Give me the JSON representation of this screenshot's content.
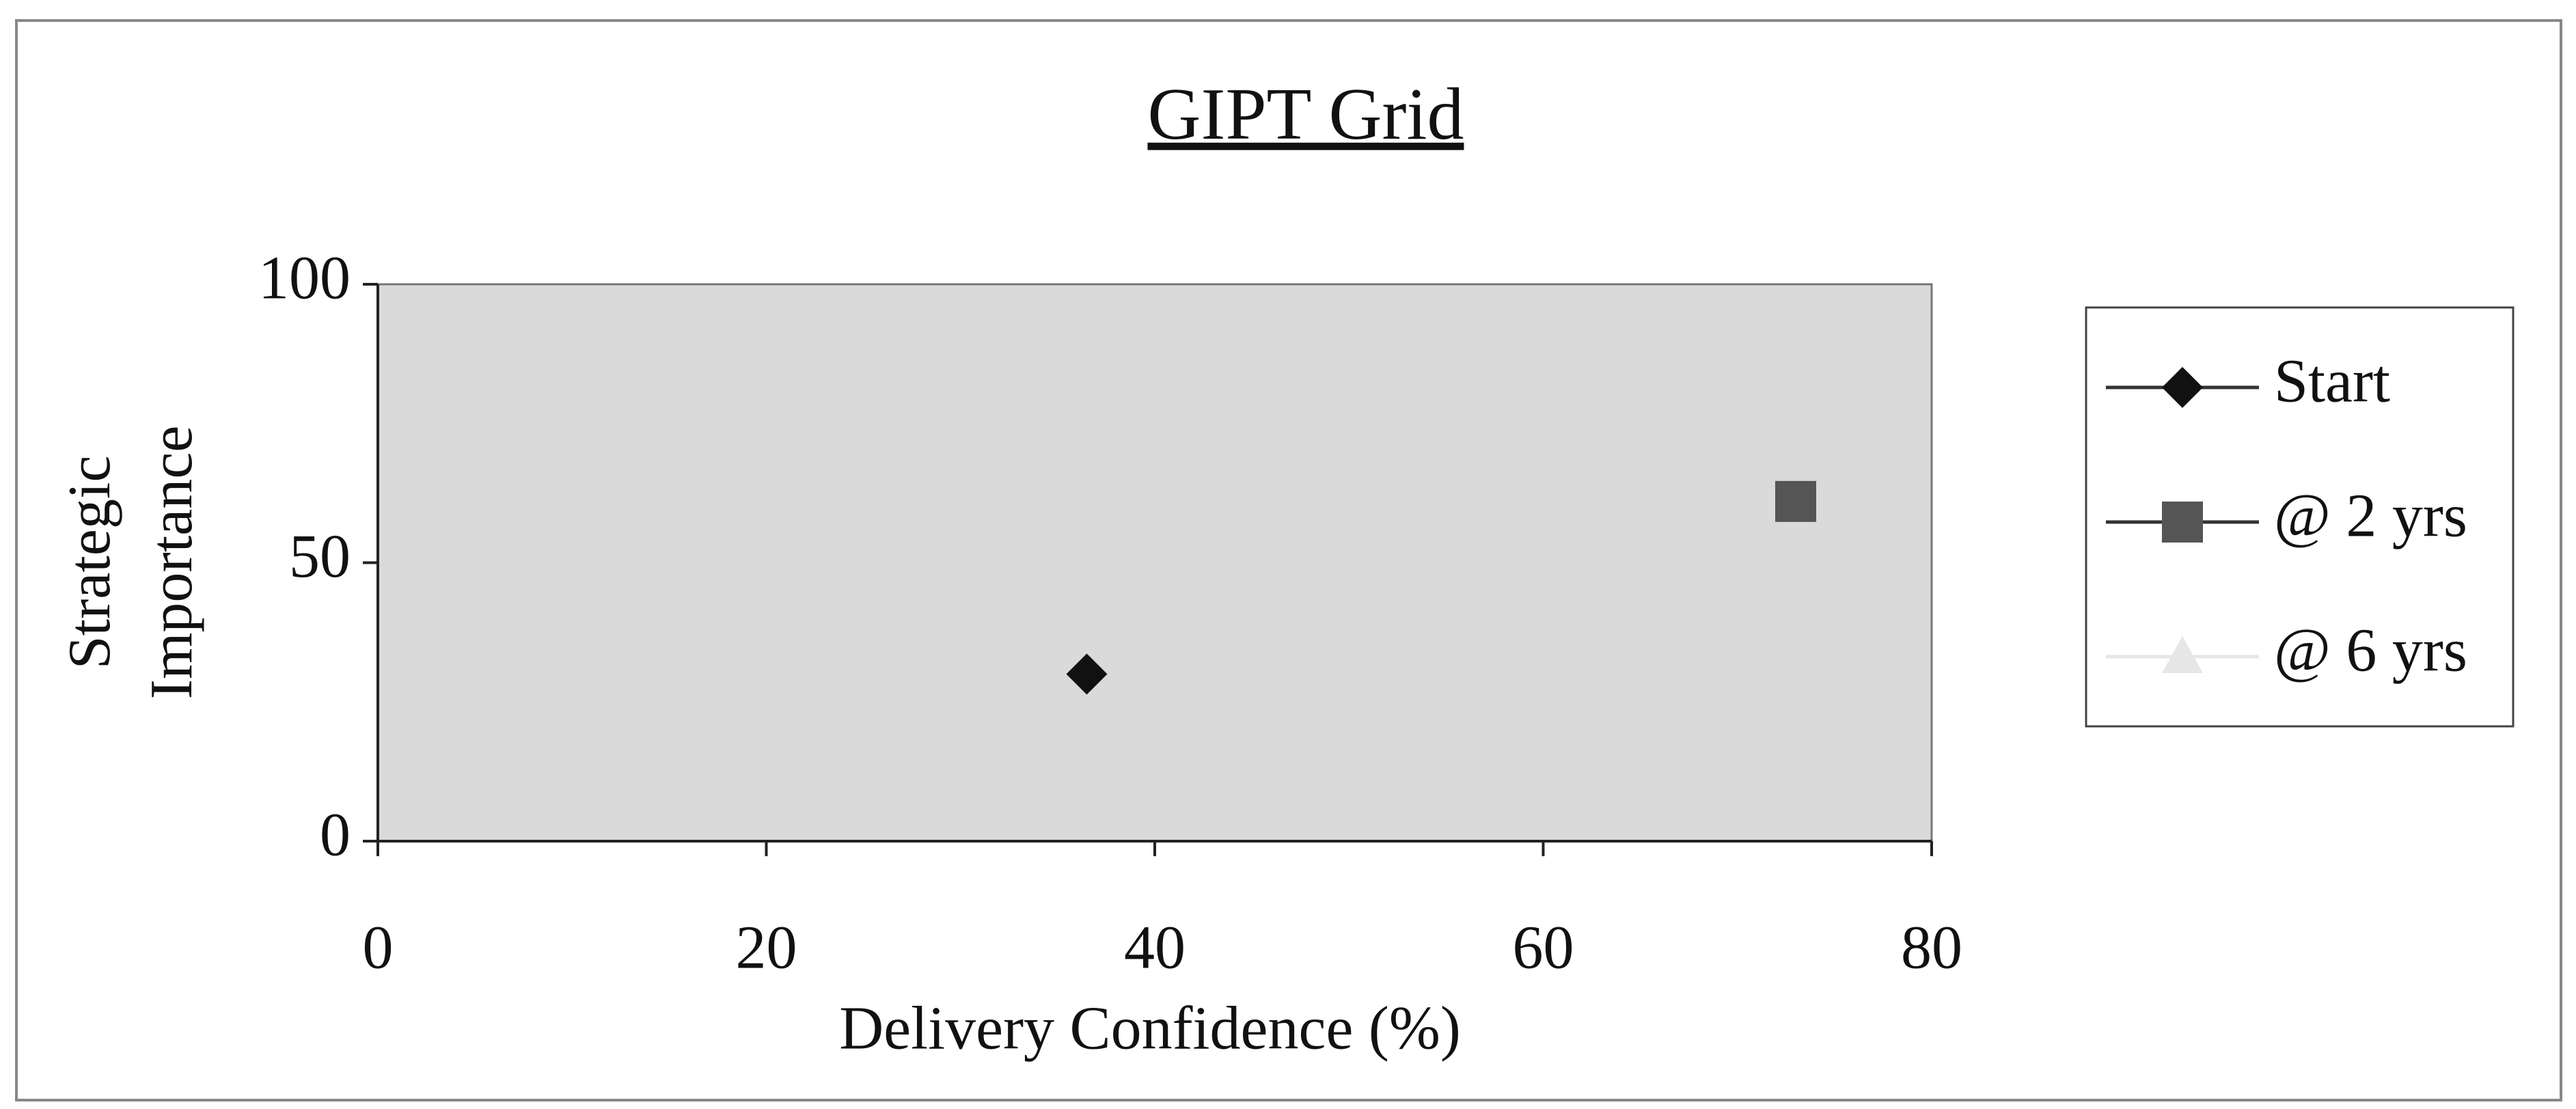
{
  "chart_data": {
    "type": "scatter",
    "title": "GIPT Grid",
    "x_label": "Delivery Confidence (%)",
    "y_label": "Strategic Importance",
    "xlim": [
      0,
      80
    ],
    "xticks": [
      0,
      20,
      40,
      60,
      80
    ],
    "ylim": [
      0,
      100
    ],
    "yticks": [
      0,
      50,
      100
    ],
    "grid": false,
    "legend": "right",
    "series": [
      {
        "name": "Start",
        "color": "#111111",
        "marker": "diamond",
        "x": [
          36.5
        ],
        "values": [
          30
        ]
      },
      {
        "name": "@ 2 yrs",
        "color": "#555555",
        "marker": "square",
        "x": [
          73
        ],
        "values": [
          61
        ]
      },
      {
        "name": "@ 6 yrs",
        "color": "#e6e6e6",
        "marker": "triangle",
        "x": [],
        "values": []
      }
    ]
  }
}
